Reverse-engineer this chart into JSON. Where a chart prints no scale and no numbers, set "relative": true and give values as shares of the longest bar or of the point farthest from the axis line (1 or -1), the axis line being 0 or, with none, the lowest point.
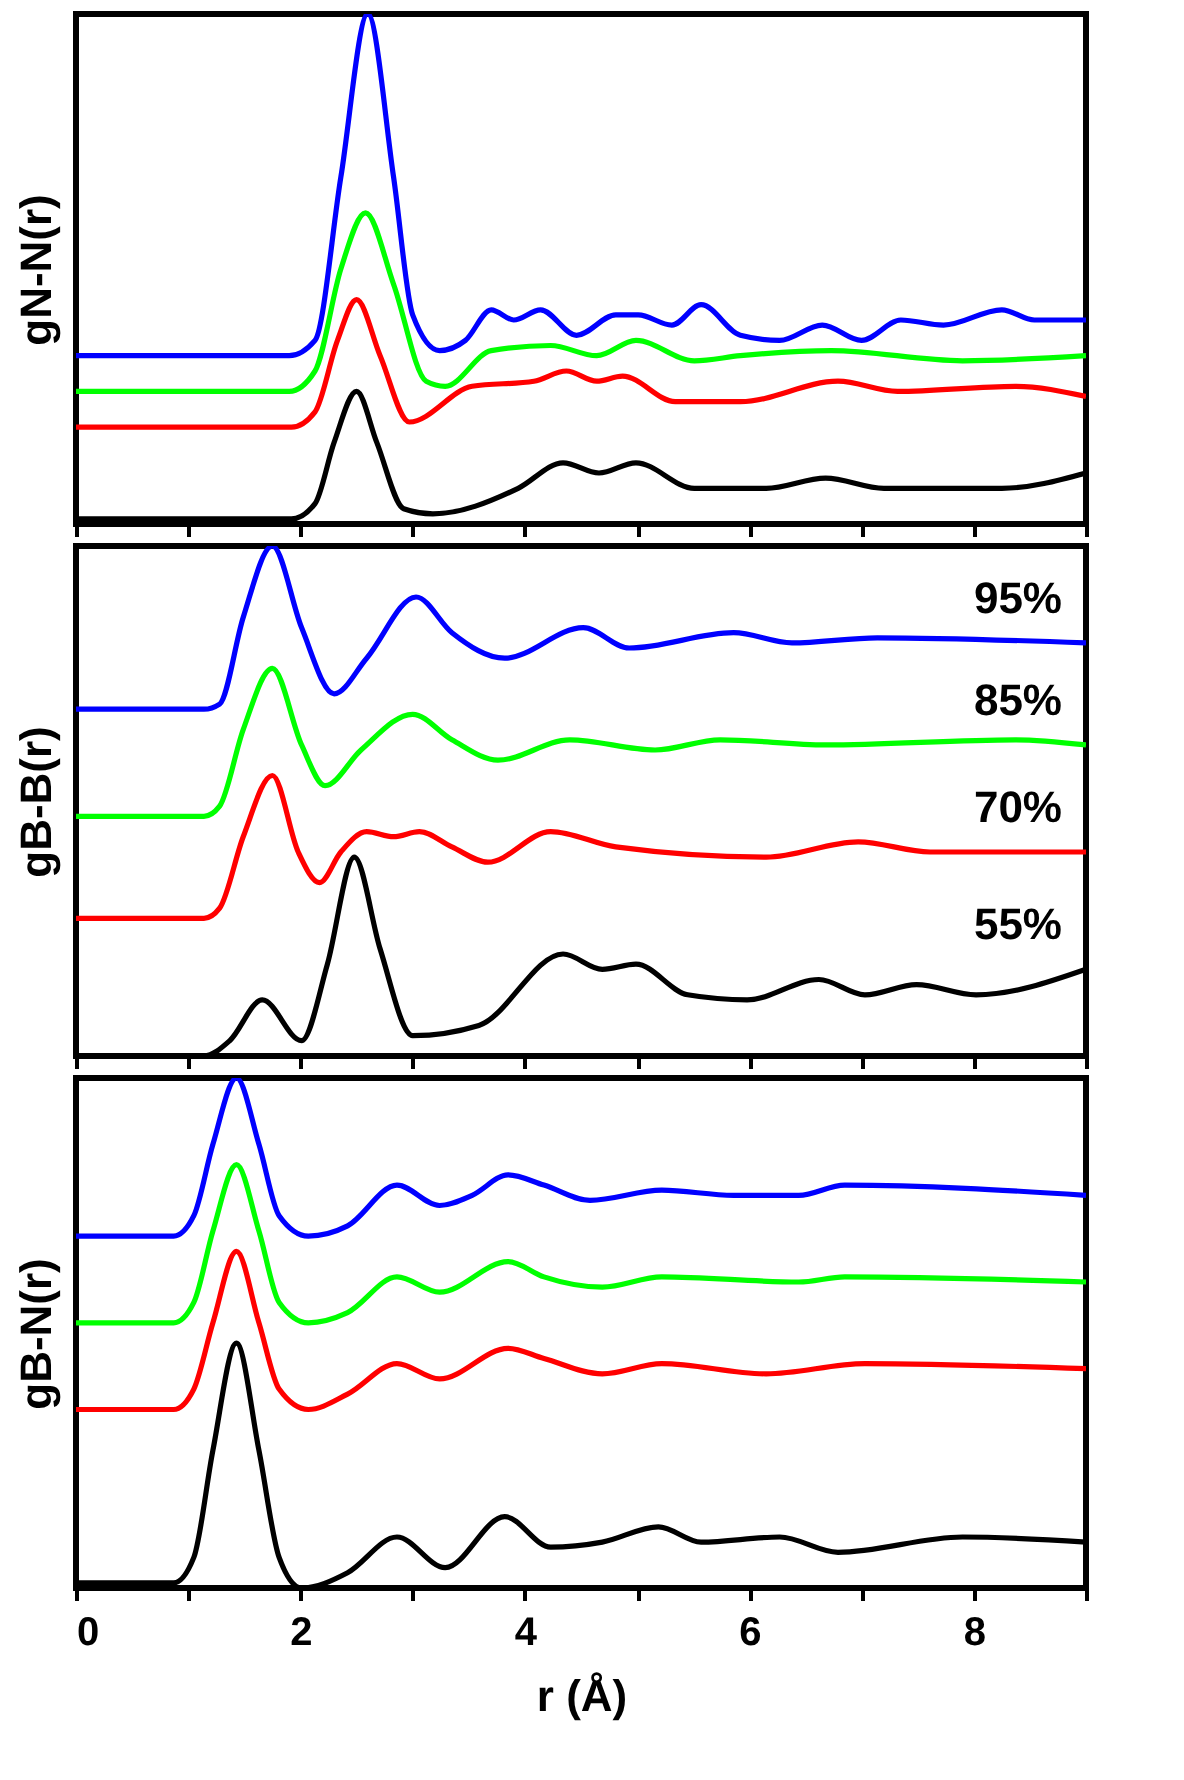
{
  "chart_data": [
    {
      "type": "line",
      "relative": true,
      "ylabel": "gN-N(r)",
      "xlim": [
        0,
        9
      ],
      "xticks": [
        0,
        {
          "value": 1,
          "label": null
        },
        2,
        {
          "value": 3,
          "label": null
        },
        4,
        {
          "value": 5,
          "label": null
        },
        6,
        {
          "value": 7,
          "label": null
        },
        8,
        {
          "value": 9,
          "label": null
        }
      ],
      "tick_labels": false,
      "grid": false,
      "series": [
        {
          "color": "#000000",
          "x": [
            0,
            1.92,
            2.13,
            2.3,
            2.5,
            2.68,
            2.92,
            3.18,
            3.94,
            4.34,
            4.66,
            4.99,
            5.51,
            6.15,
            6.68,
            7.2,
            8.25,
            9.0
          ],
          "values": [
            0.01,
            0.01,
            0.04,
            0.16,
            0.26,
            0.16,
            0.03,
            0.02,
            0.07,
            0.12,
            0.1,
            0.12,
            0.07,
            0.07,
            0.09,
            0.07,
            0.07,
            0.1
          ]
        },
        {
          "color": "#ff0000",
          "x": [
            0,
            1.92,
            2.13,
            2.33,
            2.5,
            2.71,
            2.97,
            3.53,
            4.08,
            4.37,
            4.64,
            4.87,
            5.34,
            5.92,
            6.79,
            7.32,
            8.37,
            9.0
          ],
          "values": [
            0.19,
            0.19,
            0.22,
            0.36,
            0.44,
            0.33,
            0.2,
            0.27,
            0.28,
            0.3,
            0.28,
            0.29,
            0.24,
            0.24,
            0.28,
            0.26,
            0.27,
            0.25
          ]
        },
        {
          "color": "#00ff00",
          "x": [
            0,
            1.9,
            2.13,
            2.36,
            2.58,
            2.83,
            3.12,
            3.29,
            3.7,
            4.23,
            4.64,
            4.99,
            5.51,
            5.92,
            6.73,
            7.9,
            9.0
          ],
          "values": [
            0.26,
            0.26,
            0.3,
            0.5,
            0.61,
            0.47,
            0.28,
            0.27,
            0.34,
            0.35,
            0.33,
            0.36,
            0.32,
            0.33,
            0.34,
            0.32,
            0.33
          ]
        },
        {
          "color": "#0000ff",
          "x": [
            0,
            1.9,
            2.13,
            2.36,
            2.6,
            2.83,
            3.0,
            3.24,
            3.47,
            3.7,
            3.9,
            4.14,
            4.46,
            4.81,
            5.01,
            5.31,
            5.57,
            5.92,
            6.27,
            6.65,
            7.0,
            7.35,
            7.73,
            8.25,
            8.54,
            9.0
          ],
          "values": [
            0.33,
            0.33,
            0.36,
            0.68,
            1,
            0.68,
            0.41,
            0.34,
            0.36,
            0.42,
            0.4,
            0.42,
            0.37,
            0.41,
            0.41,
            0.39,
            0.43,
            0.37,
            0.36,
            0.39,
            0.36,
            0.4,
            0.39,
            0.42,
            0.4,
            0.4
          ]
        }
      ]
    },
    {
      "type": "line",
      "relative": true,
      "ylabel": "gB-B(r)",
      "xlim": [
        0,
        9
      ],
      "xticks": [
        0,
        {
          "value": 1,
          "label": null
        },
        2,
        {
          "value": 3,
          "label": null
        },
        4,
        {
          "value": 5,
          "label": null
        },
        6,
        {
          "value": 7,
          "label": null
        },
        8,
        {
          "value": 9,
          "label": null
        }
      ],
      "tick_labels": false,
      "grid": false,
      "series": [
        {
          "name": "55%",
          "color": "#000000",
          "x": [
            0,
            1.14,
            1.37,
            1.66,
            2.01,
            2.24,
            2.48,
            2.71,
            3.0,
            3.59,
            4.34,
            4.69,
            4.99,
            5.45,
            5.98,
            6.62,
            7.03,
            7.49,
            8.02,
            9.0
          ],
          "values": [
            0.0,
            0.0,
            0.03,
            0.11,
            0.03,
            0.18,
            0.39,
            0.21,
            0.04,
            0.06,
            0.2,
            0.17,
            0.18,
            0.12,
            0.11,
            0.15,
            0.12,
            0.14,
            0.12,
            0.17
          ]
        },
        {
          "name": "70%",
          "color": "#ff0000",
          "x": [
            0,
            1.14,
            1.28,
            1.49,
            1.75,
            1.98,
            2.17,
            2.36,
            2.59,
            2.83,
            3.06,
            3.35,
            3.67,
            4.23,
            4.81,
            6.15,
            6.97,
            7.61,
            9.0
          ],
          "values": [
            0.27,
            0.27,
            0.29,
            0.43,
            0.55,
            0.4,
            0.34,
            0.4,
            0.44,
            0.43,
            0.44,
            0.41,
            0.38,
            0.44,
            0.41,
            0.39,
            0.42,
            0.4,
            0.4
          ]
        },
        {
          "name": "85%",
          "color": "#00ff00",
          "x": [
            0,
            1.14,
            1.28,
            1.49,
            1.75,
            2.01,
            2.22,
            2.54,
            3.0,
            3.35,
            3.76,
            4.4,
            5.16,
            5.74,
            6.68,
            8.37,
            9.0
          ],
          "values": [
            0.47,
            0.47,
            0.49,
            0.64,
            0.76,
            0.61,
            0.53,
            0.6,
            0.67,
            0.62,
            0.58,
            0.62,
            0.6,
            0.62,
            0.61,
            0.62,
            0.61
          ]
        },
        {
          "name": "95%",
          "color": "#0000ff",
          "x": [
            0,
            1.14,
            1.28,
            1.49,
            1.75,
            2.01,
            2.3,
            2.59,
            3.03,
            3.35,
            3.82,
            4.52,
            4.93,
            5.86,
            6.38,
            7.14,
            9.0
          ],
          "values": [
            0.68,
            0.68,
            0.69,
            0.86,
            1,
            0.84,
            0.71,
            0.78,
            0.9,
            0.83,
            0.78,
            0.84,
            0.8,
            0.83,
            0.81,
            0.82,
            0.81
          ]
        }
      ]
    },
    {
      "type": "line",
      "relative": true,
      "ylabel": "gB-N(r)",
      "xlabel": "r (Å)",
      "xlim": [
        0,
        9
      ],
      "xticks": [
        0,
        {
          "value": 1,
          "label": null
        },
        2,
        {
          "value": 3,
          "label": null
        },
        4,
        {
          "value": 5,
          "label": null
        },
        6,
        {
          "value": 7,
          "label": null
        },
        8,
        {
          "value": 9,
          "label": null
        }
      ],
      "tick_labels": "x",
      "grid": false,
      "series": [
        {
          "color": "#000000",
          "x": [
            0,
            0.87,
            1.05,
            1.22,
            1.43,
            1.63,
            1.81,
            2.01,
            2.42,
            2.86,
            3.29,
            3.82,
            4.23,
            4.69,
            5.19,
            5.57,
            6.27,
            6.79,
            7.9,
            9.0
          ],
          "values": [
            0.01,
            0.01,
            0.06,
            0.27,
            0.48,
            0.27,
            0.06,
            0.0,
            0.03,
            0.1,
            0.04,
            0.14,
            0.08,
            0.09,
            0.12,
            0.09,
            0.1,
            0.07,
            0.1,
            0.09
          ]
        },
        {
          "color": "#ff0000",
          "x": [
            0,
            0.87,
            1.05,
            1.22,
            1.43,
            1.63,
            1.81,
            2.07,
            2.42,
            2.86,
            3.24,
            3.85,
            4.17,
            4.69,
            5.22,
            6.15,
            7.03,
            9.0
          ],
          "values": [
            0.35,
            0.35,
            0.39,
            0.52,
            0.66,
            0.52,
            0.39,
            0.35,
            0.38,
            0.44,
            0.41,
            0.47,
            0.45,
            0.42,
            0.44,
            0.42,
            0.44,
            0.43
          ]
        },
        {
          "color": "#00ff00",
          "x": [
            0,
            0.87,
            1.05,
            1.22,
            1.43,
            1.63,
            1.81,
            2.07,
            2.42,
            2.86,
            3.24,
            3.85,
            4.17,
            4.69,
            5.22,
            6.44,
            6.85,
            9.0
          ],
          "values": [
            0.52,
            0.52,
            0.56,
            0.7,
            0.83,
            0.7,
            0.56,
            0.52,
            0.54,
            0.61,
            0.58,
            0.64,
            0.61,
            0.59,
            0.61,
            0.6,
            0.61,
            0.6
          ]
        },
        {
          "color": "#0000ff",
          "x": [
            0,
            0.87,
            1.05,
            1.22,
            1.43,
            1.63,
            1.81,
            2.07,
            2.42,
            2.86,
            3.24,
            3.53,
            3.85,
            4.17,
            4.58,
            5.22,
            5.86,
            6.44,
            6.85,
            9.0
          ],
          "values": [
            0.69,
            0.69,
            0.73,
            0.87,
            1,
            0.87,
            0.73,
            0.69,
            0.71,
            0.79,
            0.75,
            0.77,
            0.81,
            0.79,
            0.76,
            0.78,
            0.77,
            0.77,
            0.79,
            0.77
          ]
        }
      ]
    }
  ]
}
